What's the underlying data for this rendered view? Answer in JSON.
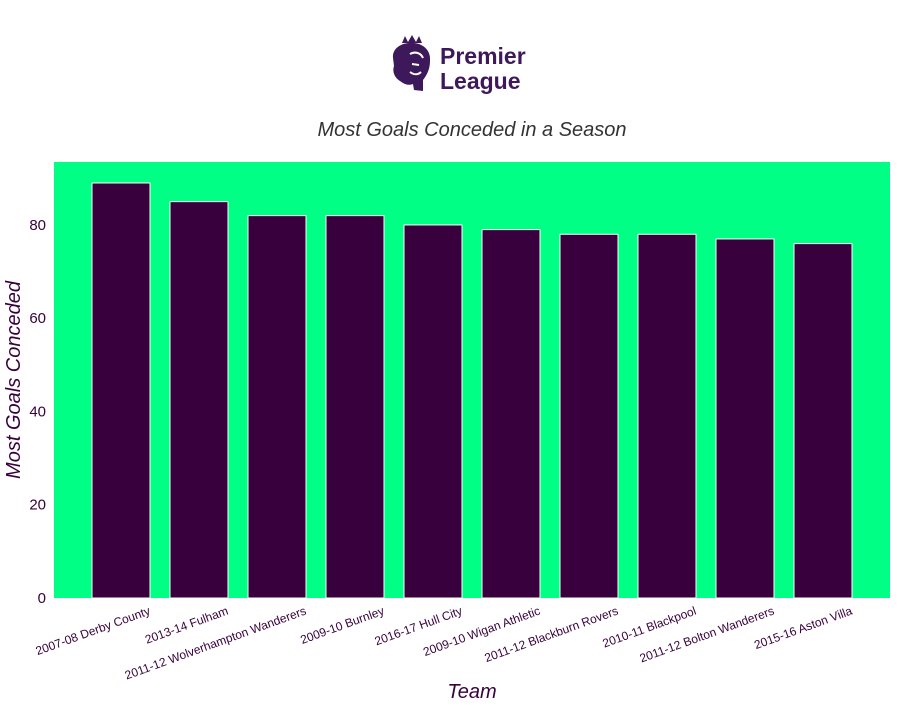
{
  "logo": {
    "line1": "Premier",
    "line2": "League",
    "color": "#3d195b"
  },
  "chart_data": {
    "type": "bar",
    "title": "Most Goals Conceded in a Season",
    "xlabel": "Team",
    "ylabel": "Most Goals Conceded",
    "categories": [
      "2007-08 Derby County",
      "2013-14 Fulham",
      "2011-12 Wolverhampton Wanderers",
      "2009-10 Burnley",
      "2016-17 Hull City",
      "2009-10 Wigan Athletic",
      "2011-12 Blackburn Rovers",
      "2010-11 Blackpool",
      "2011-12 Bolton Wanderers",
      "2015-16 Aston Villa"
    ],
    "values": [
      89,
      85,
      82,
      82,
      80,
      79,
      78,
      78,
      77,
      76
    ],
    "ylim": [
      0,
      93.5
    ],
    "yticks": [
      0,
      20,
      40,
      60,
      80
    ],
    "grid": false,
    "colors": {
      "background": "#00ff85",
      "bar": "#38003c",
      "bar_edge": "#ffffff",
      "text": "#38003c",
      "title": "#333333"
    }
  }
}
